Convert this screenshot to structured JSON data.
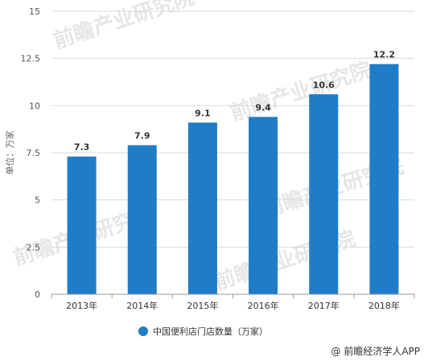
{
  "chart_data": {
    "type": "bar",
    "categories": [
      "2013年",
      "2014年",
      "2015年",
      "2016年",
      "2017年",
      "2018年"
    ],
    "series": [
      {
        "name": "中国便利店门店数量（万家）",
        "values": [
          7.3,
          7.9,
          9.1,
          9.4,
          10.6,
          12.2
        ],
        "color": "#1f7cc6"
      }
    ],
    "data_labels": [
      "7.3",
      "7.9",
      "9.1",
      "9.4",
      "10.6",
      "12.2"
    ],
    "ylabel": "单位：万家",
    "xlabel": "",
    "ylim": [
      0,
      15
    ],
    "yticks": [
      "0",
      "2.5",
      "5",
      "7.5",
      "10",
      "12.5",
      "15"
    ],
    "grid": true,
    "legend_position": "bottom"
  },
  "watermark": {
    "source": "@ 前瞻经济学人APP",
    "brand": "前瞻产业研究院"
  },
  "colors": {
    "bar": "#1f7cc6",
    "grid": "#d9d9d9",
    "axis": "#999999"
  }
}
